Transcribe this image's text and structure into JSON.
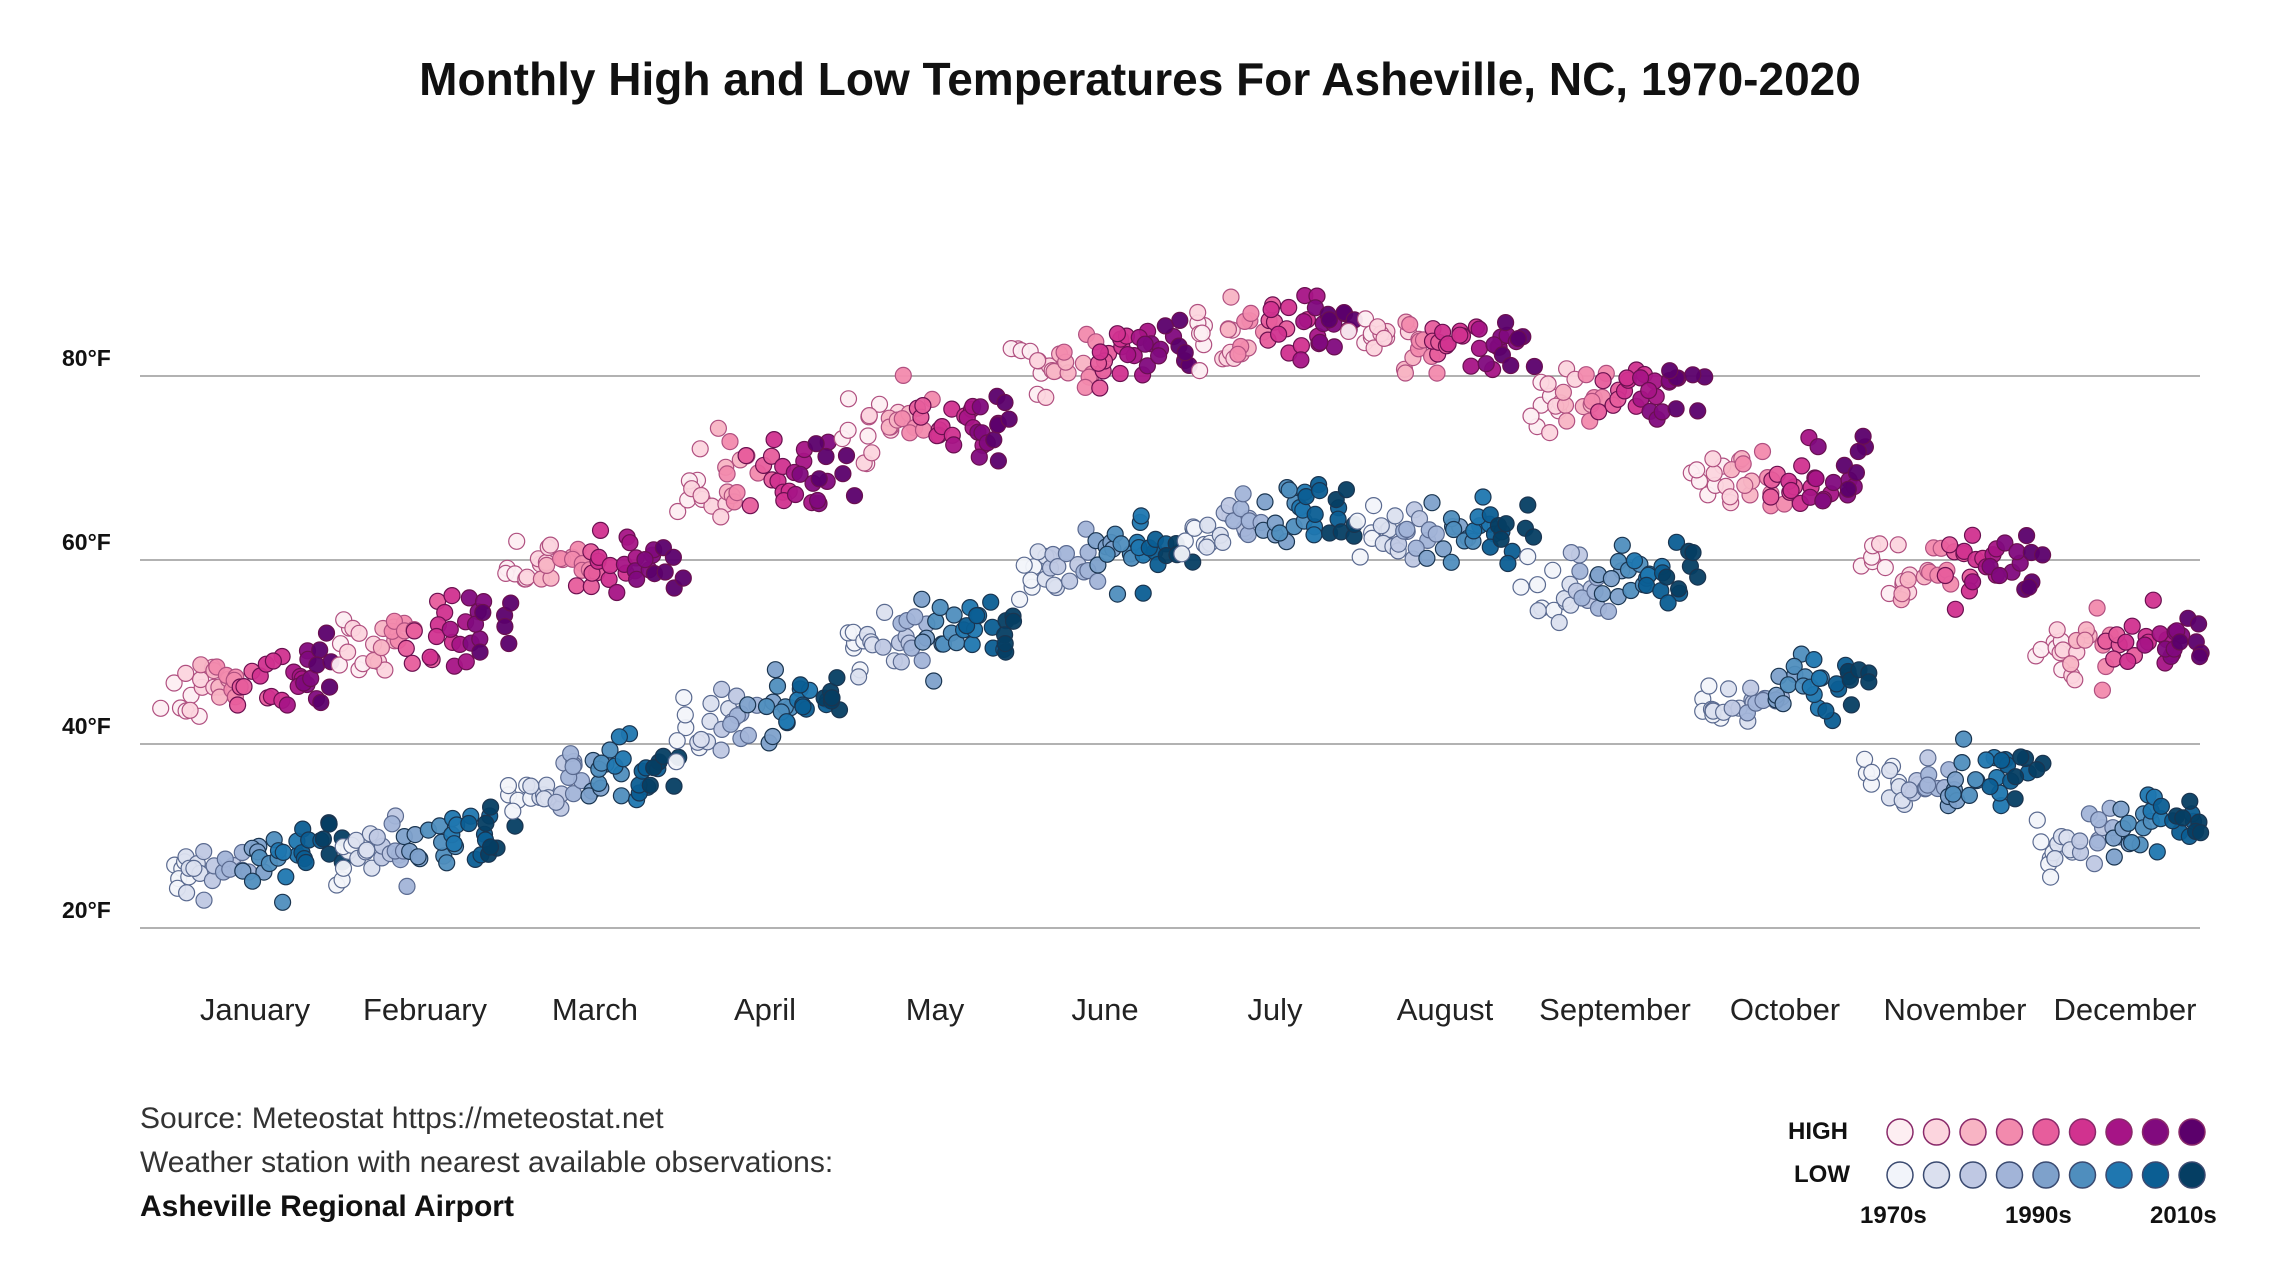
{
  "chart_data": {
    "type": "scatter",
    "title": "Monthly High and Low Temperatures For Asheville, NC, 1970-2020",
    "xlabel": "",
    "ylabel": "",
    "categories": [
      "January",
      "February",
      "March",
      "April",
      "May",
      "June",
      "July",
      "August",
      "September",
      "October",
      "November",
      "December"
    ],
    "y_ticks": [
      {
        "value": 20,
        "label": "20°F"
      },
      {
        "value": 40,
        "label": "40°F"
      },
      {
        "value": 60,
        "label": "60°F"
      },
      {
        "value": 80,
        "label": "80°F"
      }
    ],
    "ylim": [
      14,
      96
    ],
    "grid": true,
    "years": [
      1970,
      2020
    ],
    "high_trend": [
      {
        "month": "January",
        "start": 46,
        "end": 48
      },
      {
        "month": "February",
        "start": 50,
        "end": 53
      },
      {
        "month": "March",
        "start": 59,
        "end": 60
      },
      {
        "month": "April",
        "start": 69,
        "end": 69
      },
      {
        "month": "May",
        "start": 75,
        "end": 75
      },
      {
        "month": "June",
        "start": 81,
        "end": 83
      },
      {
        "month": "July",
        "start": 84,
        "end": 86
      },
      {
        "month": "August",
        "start": 83,
        "end": 84
      },
      {
        "month": "September",
        "start": 77,
        "end": 79
      },
      {
        "month": "October",
        "start": 68,
        "end": 70
      },
      {
        "month": "November",
        "start": 59,
        "end": 59
      },
      {
        "month": "December",
        "start": 50,
        "end": 52
      }
    ],
    "low_trend": [
      {
        "month": "January",
        "start": 25,
        "end": 29
      },
      {
        "month": "February",
        "start": 27,
        "end": 31
      },
      {
        "month": "March",
        "start": 34,
        "end": 38
      },
      {
        "month": "April",
        "start": 42,
        "end": 45
      },
      {
        "month": "May",
        "start": 50,
        "end": 54
      },
      {
        "month": "June",
        "start": 58,
        "end": 62
      },
      {
        "month": "July",
        "start": 63,
        "end": 66
      },
      {
        "month": "August",
        "start": 62,
        "end": 64
      },
      {
        "month": "September",
        "start": 56,
        "end": 59
      },
      {
        "month": "October",
        "start": 43,
        "end": 47
      },
      {
        "month": "November",
        "start": 35,
        "end": 36
      },
      {
        "month": "December",
        "start": 29,
        "end": 32
      }
    ]
  },
  "source": {
    "line1": "Source: Meteostat https://meteostat.net",
    "line2": "Weather station with nearest available observations:",
    "line3": "Asheville Regional Airport"
  },
  "legend": {
    "high_label": "HIGH",
    "low_label": "LOW",
    "decades": [
      "1970s",
      "1990s",
      "2010s"
    ],
    "high_colors": [
      "#fdeef2",
      "#fcd5de",
      "#f8b4c4",
      "#f28aad",
      "#e75d9c",
      "#d1328f",
      "#a61486",
      "#810a7e",
      "#5b006b"
    ],
    "low_colors": [
      "#f2f4fa",
      "#dbe0ef",
      "#bfc8e3",
      "#a2b4d8",
      "#7ea1cb",
      "#4f8ebe",
      "#1f77b0",
      "#0b5e93",
      "#053e63"
    ]
  }
}
